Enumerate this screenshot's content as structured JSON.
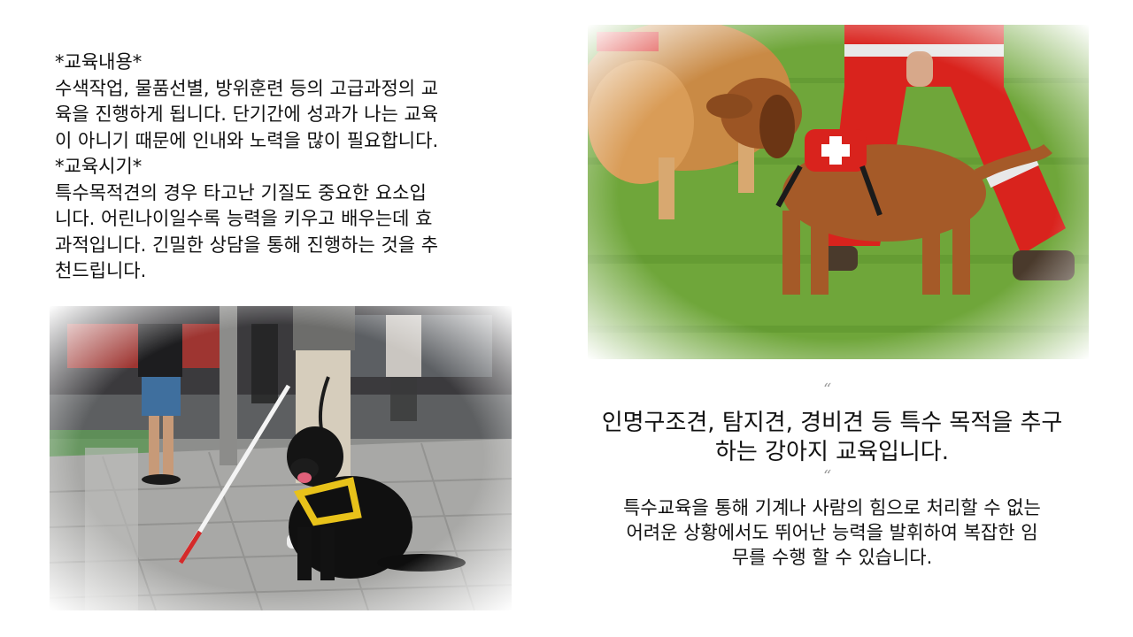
{
  "left_text": {
    "heading1": "*교육내용*",
    "content1": [
      " 수색작업, 물품선별, 방위훈련 등의 고급과정의 교",
      "육을 진행하게 됩니다. 단기간에 성과가 나는 교육",
      "이 아니기 때문에 인내와 노력을 많이 필요합니다."
    ],
    "heading2": "*교육시기*",
    "content2": [
      " 특수목적견의 경우 타고난 기질도 중요한 요소입",
      "니다. 어린나이일수록 능력을 키우고 배우는데 효",
      "과적입니다. 긴밀한 상담을 통해 진행하는 것을 추",
      "천드립니다."
    ]
  },
  "quote_open": "“",
  "quote_close": "“",
  "headline": [
    "인명구조견, 탐지견, 경비견 등 특수 목적을 추구",
    "하는 강아지 교육입니다."
  ],
  "body_right": [
    "특수교육을 통해 기계나 사람의 힘으로 처리할 수 없는",
    "어려운 상황에서도 뛰어난 능력을 발휘하여 복잡한 임",
    "무를 수행 할 수 있습니다."
  ],
  "colors": {
    "rescue_red": "#d9231d",
    "grass_green": "#6fa63a",
    "harness_yellow": "#e8c21a"
  }
}
